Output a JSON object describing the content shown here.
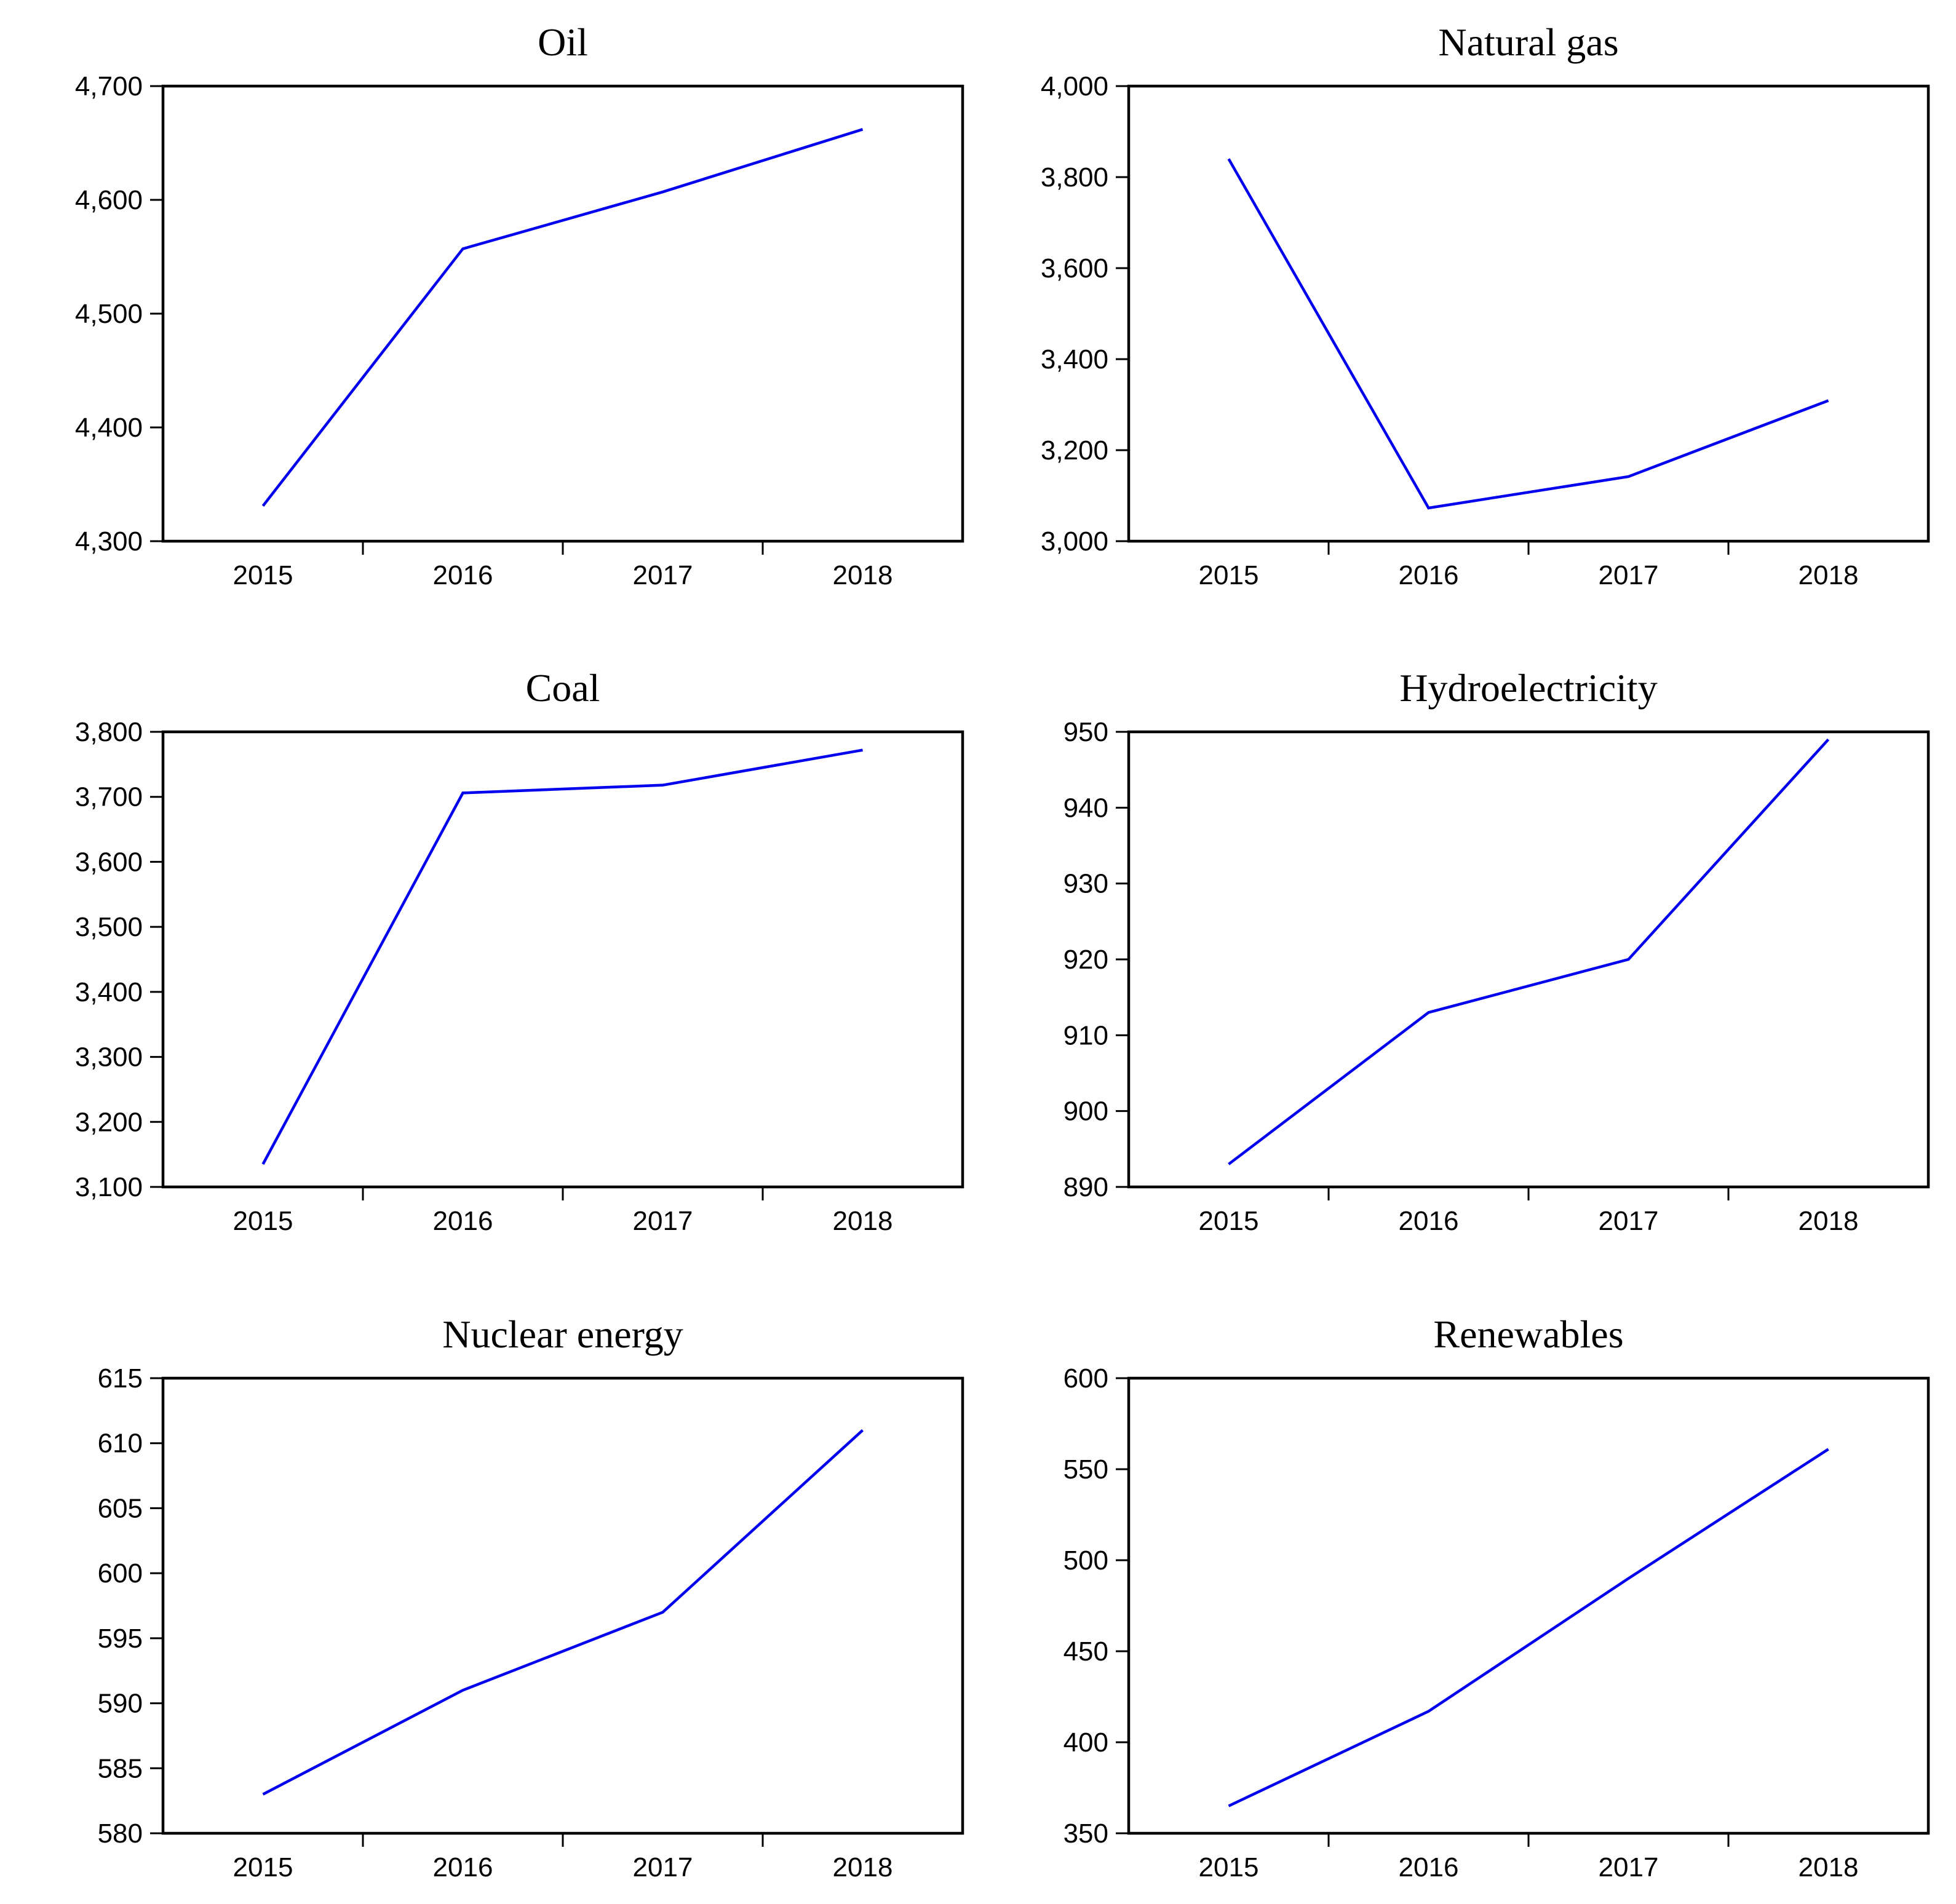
{
  "figure": {
    "background": "#ffffff",
    "frame_color": "#000000",
    "line_color": "#0000ee",
    "grid": false,
    "legend": "none",
    "categories": [
      "2015",
      "2016",
      "2017",
      "2018"
    ]
  },
  "chart_data": [
    {
      "type": "line",
      "title": "Oil",
      "categories": [
        "2015",
        "2016",
        "2017",
        "2018"
      ],
      "values": [
        4331,
        4557,
        4607,
        4662
      ],
      "ylim": [
        4300,
        4700
      ],
      "ytick_step": 100,
      "ytick_labels": [
        "4,300",
        "4,400",
        "4,500",
        "4,600",
        "4,700"
      ],
      "xlabel": "",
      "ylabel": ""
    },
    {
      "type": "line",
      "title": "Natural gas",
      "categories": [
        "2015",
        "2016",
        "2017",
        "2018"
      ],
      "values": [
        3840,
        3073,
        3142,
        3309
      ],
      "ylim": [
        3000,
        4000
      ],
      "ytick_step": 200,
      "ytick_labels": [
        "3,000",
        "3,200",
        "3,400",
        "3,600",
        "3,800",
        "4,000"
      ],
      "xlabel": "",
      "ylabel": ""
    },
    {
      "type": "line",
      "title": "Coal",
      "categories": [
        "2015",
        "2016",
        "2017",
        "2018"
      ],
      "values": [
        3135,
        3706,
        3718,
        3772
      ],
      "ylim": [
        3100,
        3800
      ],
      "ytick_step": 100,
      "ytick_labels": [
        "3,100",
        "3,200",
        "3,300",
        "3,400",
        "3,500",
        "3,600",
        "3,700",
        "3,800"
      ],
      "xlabel": "",
      "ylabel": ""
    },
    {
      "type": "line",
      "title": "Hydroelectricity",
      "categories": [
        "2015",
        "2016",
        "2017",
        "2018"
      ],
      "values": [
        893,
        913,
        920,
        949
      ],
      "ylim": [
        890,
        950
      ],
      "ytick_step": 10,
      "ytick_labels": [
        "890",
        "900",
        "910",
        "920",
        "930",
        "940",
        "950"
      ],
      "xlabel": "",
      "ylabel": ""
    },
    {
      "type": "line",
      "title": "Nuclear energy",
      "categories": [
        "2015",
        "2016",
        "2017",
        "2018"
      ],
      "values": [
        583,
        591,
        597,
        611
      ],
      "ylim": [
        580,
        615
      ],
      "ytick_step": 5,
      "ytick_labels": [
        "580",
        "585",
        "590",
        "595",
        "600",
        "605",
        "610",
        "615"
      ],
      "xlabel": "",
      "ylabel": ""
    },
    {
      "type": "line",
      "title": "Renewables",
      "categories": [
        "2015",
        "2016",
        "2017",
        "2018"
      ],
      "values": [
        365,
        417,
        490,
        561
      ],
      "ylim": [
        350,
        600
      ],
      "ytick_step": 50,
      "ytick_labels": [
        "350",
        "400",
        "450",
        "500",
        "550",
        "600"
      ],
      "xlabel": "",
      "ylabel": ""
    }
  ]
}
